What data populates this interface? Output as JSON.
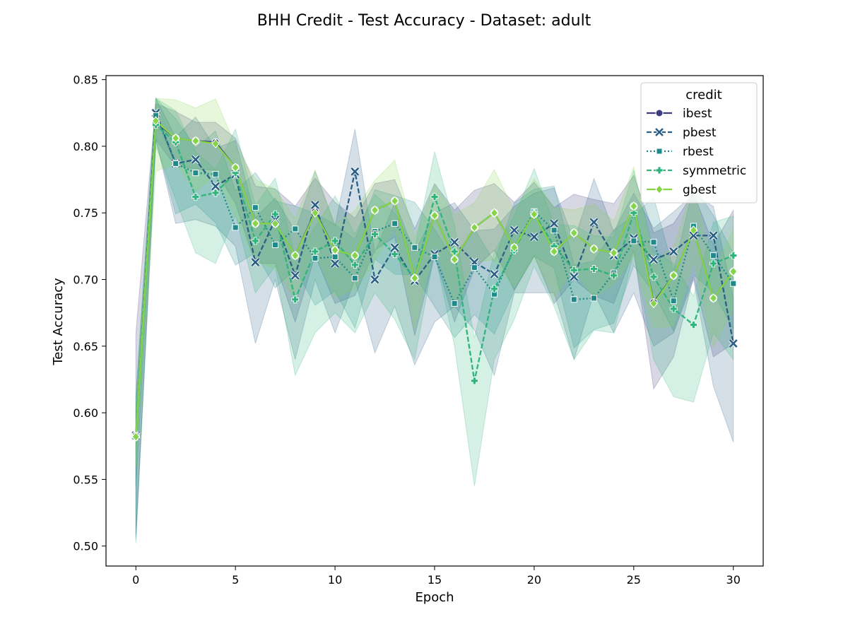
{
  "chart_data": {
    "type": "line",
    "title": "BHH Credit - Test Accuracy - Dataset: adult",
    "xlabel": "Epoch",
    "ylabel": "Test Accuracy",
    "xlim": [
      -1.5,
      31.5
    ],
    "ylim": [
      0.485,
      0.853
    ],
    "xticks": [
      0,
      5,
      10,
      15,
      20,
      25,
      30
    ],
    "yticks": [
      0.5,
      0.55,
      0.6,
      0.65,
      0.7,
      0.75,
      0.8,
      0.85
    ],
    "ytick_labels": [
      "0.50",
      "0.55",
      "0.60",
      "0.65",
      "0.70",
      "0.75",
      "0.80",
      "0.85"
    ],
    "grid": false,
    "legend": {
      "title": "credit",
      "position": "top-right"
    },
    "x": [
      0,
      1,
      2,
      3,
      4,
      5,
      6,
      7,
      8,
      9,
      10,
      11,
      12,
      13,
      14,
      15,
      16,
      17,
      18,
      19,
      20,
      21,
      22,
      23,
      24,
      25,
      26,
      27,
      28,
      29,
      30
    ],
    "series": [
      {
        "name": "ibest",
        "color": "#3e3b7f",
        "dash": "solid",
        "marker": "circle",
        "values": [
          0.582,
          0.818,
          0.806,
          0.804,
          0.803,
          0.784,
          0.742,
          0.742,
          0.718,
          0.751,
          0.722,
          0.718,
          0.752,
          0.759,
          0.701,
          0.748,
          0.715,
          0.739,
          0.75,
          0.724,
          0.749,
          0.721,
          0.735,
          0.723,
          0.72,
          0.755,
          0.683,
          0.703,
          0.737,
          0.686,
          0.706
        ],
        "lower": [
          0.505,
          0.805,
          0.785,
          0.783,
          0.782,
          0.757,
          0.712,
          0.712,
          0.668,
          0.718,
          0.682,
          0.688,
          0.722,
          0.732,
          0.658,
          0.718,
          0.668,
          0.708,
          0.722,
          0.692,
          0.718,
          0.682,
          0.7,
          0.688,
          0.682,
          0.722,
          0.618,
          0.642,
          0.702,
          0.642,
          0.652
        ],
        "upper": [
          0.66,
          0.832,
          0.826,
          0.818,
          0.818,
          0.806,
          0.77,
          0.768,
          0.755,
          0.776,
          0.758,
          0.746,
          0.772,
          0.775,
          0.738,
          0.772,
          0.752,
          0.767,
          0.772,
          0.758,
          0.773,
          0.754,
          0.764,
          0.76,
          0.757,
          0.778,
          0.735,
          0.742,
          0.765,
          0.726,
          0.752
        ]
      },
      {
        "name": "pbest",
        "color": "#2b5f86",
        "dash": "dashed",
        "marker": "x",
        "values": [
          0.583,
          0.825,
          0.787,
          0.79,
          0.77,
          0.779,
          0.713,
          0.745,
          0.703,
          0.756,
          0.712,
          0.781,
          0.7,
          0.724,
          0.699,
          0.719,
          0.728,
          0.713,
          0.704,
          0.737,
          0.732,
          0.742,
          0.702,
          0.743,
          0.718,
          0.731,
          0.715,
          0.721,
          0.733,
          0.733,
          0.652
        ],
        "lower": [
          0.508,
          0.805,
          0.742,
          0.745,
          0.74,
          0.725,
          0.652,
          0.7,
          0.64,
          0.7,
          0.66,
          0.7,
          0.645,
          0.68,
          0.636,
          0.668,
          0.68,
          0.662,
          0.628,
          0.69,
          0.69,
          0.69,
          0.64,
          0.69,
          0.66,
          0.69,
          0.65,
          0.66,
          0.7,
          0.62,
          0.578
        ]
      },
      {
        "name": "rbest",
        "color": "#208a8a",
        "dash": "dotted",
        "marker": "square",
        "values": [
          0.583,
          0.823,
          0.787,
          0.78,
          0.779,
          0.739,
          0.754,
          0.726,
          0.738,
          0.716,
          0.717,
          0.701,
          0.736,
          0.742,
          0.724,
          0.717,
          0.682,
          0.709,
          0.689,
          0.724,
          0.751,
          0.737,
          0.685,
          0.686,
          0.705,
          0.729,
          0.728,
          0.684,
          0.74,
          0.718,
          0.697
        ]
      },
      {
        "name": "symmetric",
        "color": "#2fb47c",
        "dash": "dashed",
        "marker": "plus",
        "values": [
          0.582,
          0.816,
          0.803,
          0.762,
          0.765,
          0.78,
          0.729,
          0.749,
          0.685,
          0.721,
          0.729,
          0.711,
          0.734,
          0.719,
          0.701,
          0.762,
          0.721,
          0.624,
          0.693,
          0.722,
          0.75,
          0.725,
          0.707,
          0.708,
          0.703,
          0.75,
          0.702,
          0.678,
          0.666,
          0.712,
          0.718
        ],
        "lower": [
          0.502,
          0.8,
          0.76,
          0.72,
          0.712,
          0.748,
          0.69,
          0.71,
          0.628,
          0.66,
          0.675,
          0.66,
          0.69,
          0.67,
          0.64,
          0.72,
          0.65,
          0.545,
          0.64,
          0.67,
          0.71,
          0.68,
          0.64,
          0.662,
          0.66,
          0.72,
          0.64,
          0.612,
          0.608,
          0.66,
          0.64
        ]
      },
      {
        "name": "gbest",
        "color": "#86d549",
        "dash": "solid",
        "marker": "diamond",
        "values": [
          0.582,
          0.819,
          0.806,
          0.804,
          0.802,
          0.784,
          0.742,
          0.742,
          0.718,
          0.75,
          0.722,
          0.718,
          0.752,
          0.759,
          0.701,
          0.748,
          0.715,
          0.739,
          0.75,
          0.724,
          0.749,
          0.721,
          0.735,
          0.723,
          0.72,
          0.755,
          0.682,
          0.703,
          0.737,
          0.686,
          0.706
        ]
      }
    ]
  }
}
